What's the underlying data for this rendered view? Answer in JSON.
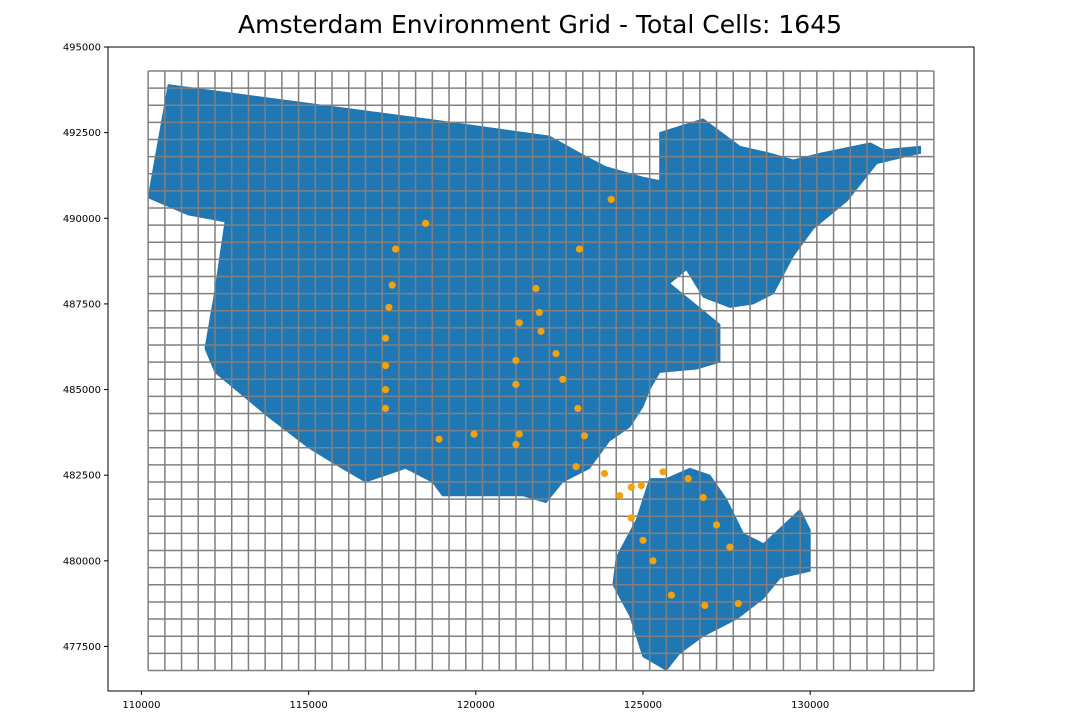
{
  "chart_data": {
    "type": "scatter",
    "title": "Amsterdam Environment Grid - Total Cells: 1645",
    "xlabel": "",
    "ylabel": "",
    "xlim": [
      109000,
      134900
    ],
    "ylim": [
      476200,
      495000
    ],
    "x_ticks": [
      "110000",
      "115000",
      "120000",
      "125000",
      "130000"
    ],
    "y_ticks": [
      "477500",
      "480000",
      "482500",
      "485000",
      "487500",
      "490000",
      "492500",
      "495000"
    ],
    "grid": {
      "x_start": 110200,
      "x_end": 133700,
      "y_start": 476800,
      "y_end": 494300,
      "cell_size": 500,
      "line_color": "#808080",
      "total_cells": 1645
    },
    "polygon_color": "#1f77b4",
    "points_color": "#f2a20c",
    "city_outline": [
      [
        110200,
        490600
      ],
      [
        110800,
        493900
      ],
      [
        118500,
        492900
      ],
      [
        122200,
        492400
      ],
      [
        123300,
        491800
      ],
      [
        123900,
        491500
      ],
      [
        125000,
        491200
      ],
      [
        125500,
        491100
      ],
      [
        125500,
        492500
      ],
      [
        126800,
        492900
      ],
      [
        127900,
        492100
      ],
      [
        128800,
        491900
      ],
      [
        129500,
        491700
      ],
      [
        130300,
        491900
      ],
      [
        131800,
        492200
      ],
      [
        132200,
        492000
      ],
      [
        133300,
        492100
      ],
      [
        133300,
        491900
      ],
      [
        132000,
        491600
      ],
      [
        131100,
        490500
      ],
      [
        130100,
        489700
      ],
      [
        129500,
        488900
      ],
      [
        128900,
        487800
      ],
      [
        128300,
        487500
      ],
      [
        127600,
        487400
      ],
      [
        126800,
        487700
      ],
      [
        126300,
        488500
      ],
      [
        125800,
        488100
      ],
      [
        126800,
        487300
      ],
      [
        127300,
        486900
      ],
      [
        127300,
        485800
      ],
      [
        126600,
        485600
      ],
      [
        125500,
        485500
      ],
      [
        125200,
        485000
      ],
      [
        125000,
        484500
      ],
      [
        124600,
        483900
      ],
      [
        124000,
        483500
      ],
      [
        123400,
        482700
      ],
      [
        122600,
        482300
      ],
      [
        122100,
        481700
      ],
      [
        121400,
        481900
      ],
      [
        119000,
        481900
      ],
      [
        118700,
        482300
      ],
      [
        117900,
        482700
      ],
      [
        116700,
        482300
      ],
      [
        116000,
        482700
      ],
      [
        115000,
        483300
      ],
      [
        113800,
        484200
      ],
      [
        112200,
        485500
      ],
      [
        111900,
        486200
      ],
      [
        112200,
        487900
      ],
      [
        112500,
        489900
      ],
      [
        111400,
        490100
      ]
    ],
    "southeast_outline": [
      [
        124200,
        480100
      ],
      [
        124800,
        481200
      ],
      [
        125200,
        482400
      ],
      [
        125700,
        482400
      ],
      [
        126400,
        482700
      ],
      [
        127000,
        482500
      ],
      [
        127500,
        481800
      ],
      [
        128000,
        480800
      ],
      [
        128600,
        480500
      ],
      [
        129700,
        481500
      ],
      [
        130000,
        480900
      ],
      [
        130000,
        479700
      ],
      [
        129100,
        479500
      ],
      [
        128600,
        478900
      ],
      [
        127800,
        478300
      ],
      [
        126800,
        477800
      ],
      [
        126100,
        477300
      ],
      [
        125700,
        476800
      ],
      [
        125000,
        477200
      ],
      [
        124600,
        478400
      ],
      [
        124100,
        479300
      ]
    ],
    "points": [
      {
        "x": 124050,
        "y": 490550
      },
      {
        "x": 118500,
        "y": 489850
      },
      {
        "x": 117600,
        "y": 489100
      },
      {
        "x": 123100,
        "y": 489100
      },
      {
        "x": 117500,
        "y": 488050
      },
      {
        "x": 121800,
        "y": 487950
      },
      {
        "x": 117400,
        "y": 487400
      },
      {
        "x": 121900,
        "y": 487250
      },
      {
        "x": 121300,
        "y": 486950
      },
      {
        "x": 121950,
        "y": 486700
      },
      {
        "x": 117300,
        "y": 486500
      },
      {
        "x": 122400,
        "y": 486050
      },
      {
        "x": 121200,
        "y": 485850
      },
      {
        "x": 117300,
        "y": 485700
      },
      {
        "x": 122600,
        "y": 485300
      },
      {
        "x": 121200,
        "y": 485150
      },
      {
        "x": 117300,
        "y": 485000
      },
      {
        "x": 117300,
        "y": 484450
      },
      {
        "x": 123050,
        "y": 484450
      },
      {
        "x": 119950,
        "y": 483700
      },
      {
        "x": 121300,
        "y": 483700
      },
      {
        "x": 123250,
        "y": 483650
      },
      {
        "x": 118900,
        "y": 483550
      },
      {
        "x": 121200,
        "y": 483400
      },
      {
        "x": 123000,
        "y": 482750
      },
      {
        "x": 123850,
        "y": 482550
      },
      {
        "x": 125600,
        "y": 482600
      },
      {
        "x": 126350,
        "y": 482400
      },
      {
        "x": 124950,
        "y": 482200
      },
      {
        "x": 124650,
        "y": 482150
      },
      {
        "x": 124300,
        "y": 481900
      },
      {
        "x": 126800,
        "y": 481850
      },
      {
        "x": 124650,
        "y": 481250
      },
      {
        "x": 127200,
        "y": 481050
      },
      {
        "x": 125000,
        "y": 480600
      },
      {
        "x": 127600,
        "y": 480400
      },
      {
        "x": 125300,
        "y": 480000
      },
      {
        "x": 125850,
        "y": 479000
      },
      {
        "x": 127850,
        "y": 478750
      },
      {
        "x": 126850,
        "y": 478700
      }
    ]
  }
}
